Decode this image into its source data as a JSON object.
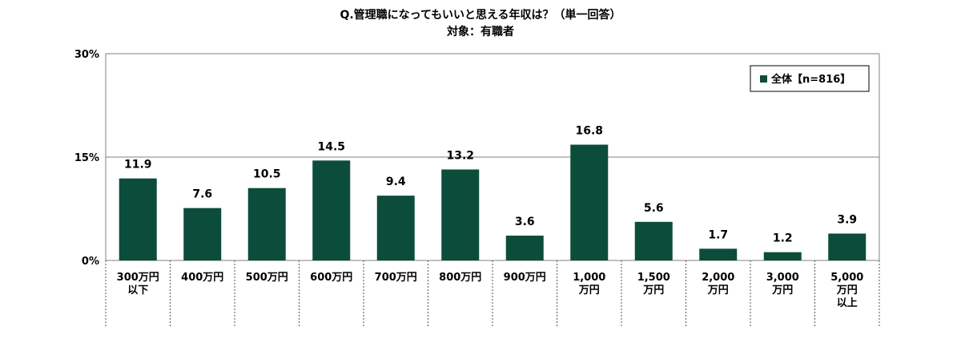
{
  "chart_data": {
    "type": "bar",
    "title": "Q.管理職になってもいいと思える年収は？（単一回答）",
    "subtitle": "対象：有職者",
    "categories": [
      [
        "300万円",
        "以下"
      ],
      [
        "400万円"
      ],
      [
        "500万円"
      ],
      [
        "600万円"
      ],
      [
        "700万円"
      ],
      [
        "800万円"
      ],
      [
        "900万円"
      ],
      [
        "1,000",
        "万円"
      ],
      [
        "1,500",
        "万円"
      ],
      [
        "2,000",
        "万円"
      ],
      [
        "3,000",
        "万円"
      ],
      [
        "5,000",
        "万円",
        "以上"
      ]
    ],
    "series": [
      {
        "name": "全体【n=816】",
        "values": [
          11.9,
          7.6,
          10.5,
          14.5,
          9.4,
          13.2,
          3.6,
          16.8,
          5.6,
          1.7,
          1.2,
          3.9
        ],
        "value_labels": [
          "11.9",
          "7.6",
          "10.5",
          "14.5",
          "9.4",
          "13.2",
          "3.6",
          "16.8",
          "5.6",
          "1.7",
          "1.2",
          "3.9"
        ]
      }
    ],
    "ylim": [
      0,
      30
    ],
    "yticks": [
      0,
      15,
      30
    ],
    "ytick_labels": [
      "0%",
      "15%",
      "30%"
    ],
    "grid": true,
    "legend_position": "top-right",
    "bar_color": "#0b4d3a",
    "grid_color": "#808080"
  }
}
